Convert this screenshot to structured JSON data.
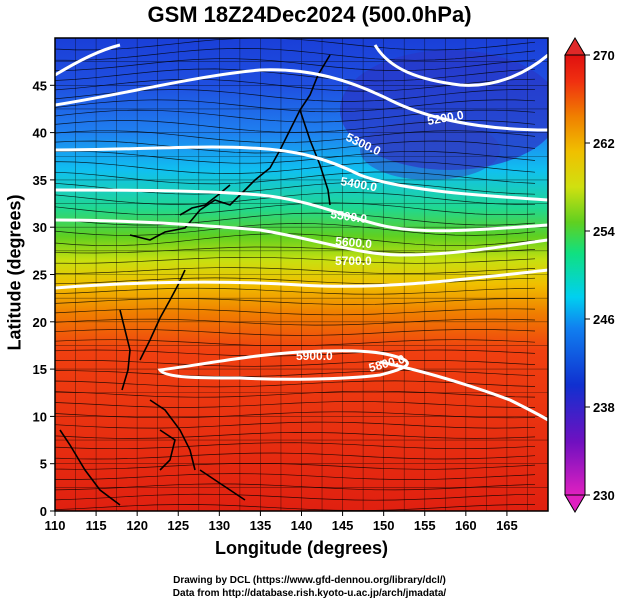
{
  "title": "GSM 18Z24Dec2024 (500.0hPa)",
  "xlabel": "Longitude (degrees)",
  "ylabel": "Latitude  (degrees)",
  "credits": {
    "line1": "Drawing by DCL (https://www.gfd-dennou.org/library/dcl/)",
    "line2": "Data from http://database.rish.kyoto-u.ac.jp/arch/jmadata/"
  },
  "chart_data": {
    "type": "heatmap",
    "variable": "temperature",
    "xlim": [
      110,
      170
    ],
    "ylim": [
      0,
      50
    ],
    "xticks": [
      110,
      115,
      120,
      125,
      130,
      135,
      140,
      145,
      150,
      155,
      160,
      165
    ],
    "yticks": [
      0,
      5,
      10,
      15,
      20,
      25,
      30,
      35,
      40,
      45
    ],
    "colorbar": {
      "range": [
        230,
        270
      ],
      "ticks": [
        230,
        238,
        246,
        254,
        262,
        270
      ],
      "colors": [
        "#e020c0",
        "#7010c0",
        "#1030d0",
        "#1080f0",
        "#00d0f0",
        "#10e080",
        "#60d020",
        "#d0e010",
        "#f0c000",
        "#f08000",
        "#f03010",
        "#e01010"
      ]
    },
    "contours": [
      {
        "label": "5200.0"
      },
      {
        "label": "5300.0"
      },
      {
        "label": "5400.0"
      },
      {
        "label": "5500.0"
      },
      {
        "label": "5600.0"
      },
      {
        "label": "5700.0"
      },
      {
        "label": "5800.0"
      },
      {
        "label": "5900.0"
      }
    ]
  }
}
